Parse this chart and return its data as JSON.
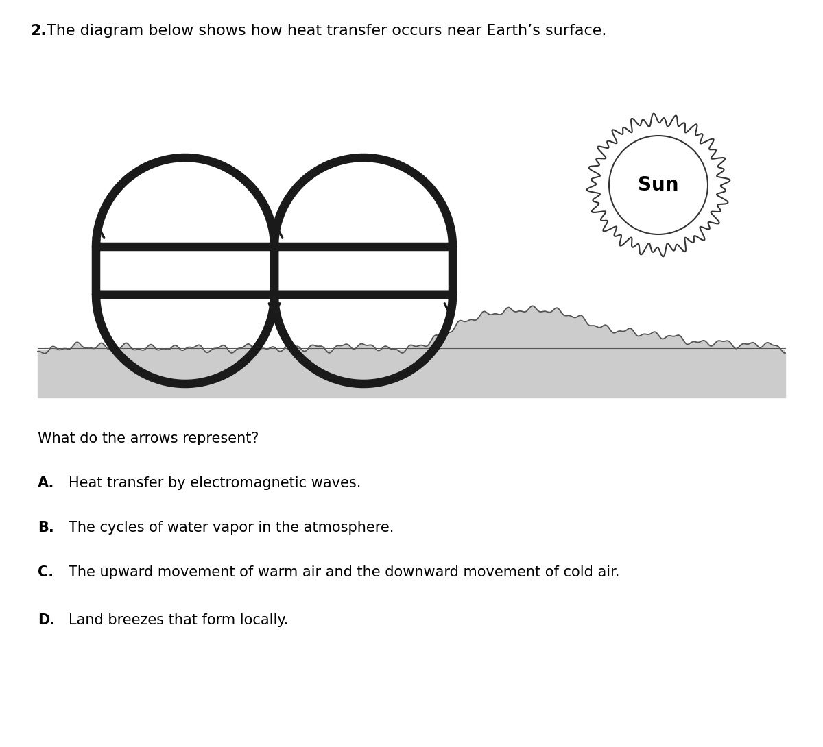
{
  "title_bold": "2.",
  "title_text": " The diagram below shows how heat transfer occurs near Earth’s surface.",
  "question_text": "What do the arrows represent?",
  "options": [
    {
      "letter": "A.",
      "text": " Heat transfer by electromagnetic waves."
    },
    {
      "letter": "B.",
      "text": " The cycles of water vapor in the atmosphere."
    },
    {
      "letter": "C.",
      "text": " The upward movement of warm air and the downward movement of cold air."
    },
    {
      "letter": "D.",
      "text": " Land breezes that form locally."
    }
  ],
  "loop_color": "#1a1a1a",
  "loop_lw": 9,
  "arrow_color": "#1a1a1a",
  "sun_color": "#333333",
  "ground_color": "#cccccc",
  "ground_line_color": "#555555",
  "bg_color": "#ffffff",
  "title_fontsize": 16,
  "question_fontsize": 15,
  "option_fontsize": 15
}
